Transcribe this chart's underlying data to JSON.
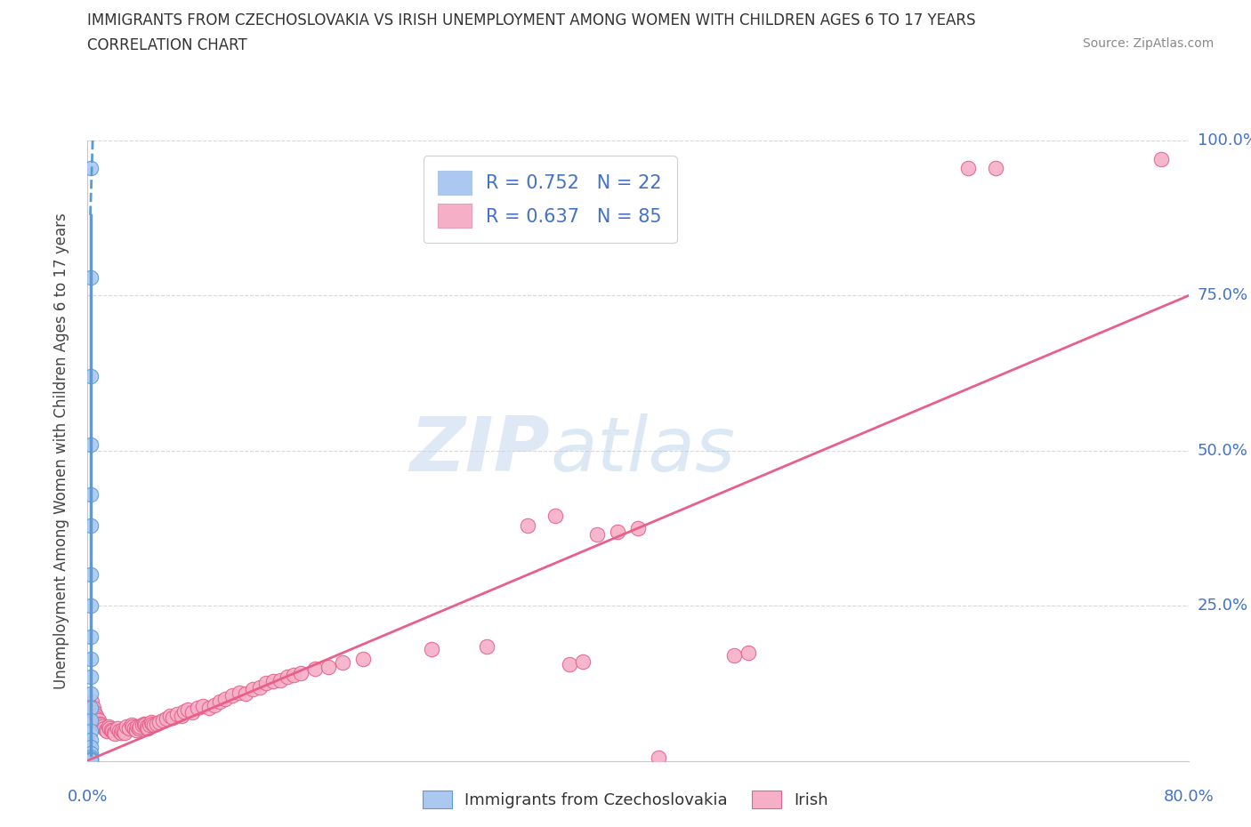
{
  "title": "IMMIGRANTS FROM CZECHOSLOVAKIA VS IRISH UNEMPLOYMENT AMONG WOMEN WITH CHILDREN AGES 6 TO 17 YEARS",
  "subtitle": "CORRELATION CHART",
  "source": "Source: ZipAtlas.com",
  "ylabel": "Unemployment Among Women with Children Ages 6 to 17 years",
  "xlim": [
    0.0,
    0.8
  ],
  "ylim": [
    0.0,
    1.0
  ],
  "xticks": [
    0.0,
    0.1,
    0.2,
    0.3,
    0.4,
    0.5,
    0.6,
    0.7,
    0.8
  ],
  "yticks": [
    0.0,
    0.25,
    0.5,
    0.75,
    1.0
  ],
  "blue_scatter": [
    [
      0.002,
      0.955
    ],
    [
      0.002,
      0.78
    ],
    [
      0.002,
      0.62
    ],
    [
      0.002,
      0.51
    ],
    [
      0.002,
      0.43
    ],
    [
      0.002,
      0.38
    ],
    [
      0.002,
      0.3
    ],
    [
      0.002,
      0.25
    ],
    [
      0.002,
      0.2
    ],
    [
      0.002,
      0.165
    ],
    [
      0.002,
      0.135
    ],
    [
      0.002,
      0.108
    ],
    [
      0.002,
      0.085
    ],
    [
      0.002,
      0.065
    ],
    [
      0.002,
      0.048
    ],
    [
      0.002,
      0.034
    ],
    [
      0.002,
      0.022
    ],
    [
      0.002,
      0.013
    ],
    [
      0.002,
      0.007
    ],
    [
      0.002,
      0.004
    ],
    [
      0.002,
      0.002
    ],
    [
      0.002,
      0.001
    ]
  ],
  "pink_scatter": [
    [
      0.003,
      0.095
    ],
    [
      0.004,
      0.085
    ],
    [
      0.005,
      0.078
    ],
    [
      0.006,
      0.072
    ],
    [
      0.007,
      0.068
    ],
    [
      0.008,
      0.065
    ],
    [
      0.009,
      0.06
    ],
    [
      0.01,
      0.058
    ],
    [
      0.011,
      0.055
    ],
    [
      0.012,
      0.052
    ],
    [
      0.013,
      0.05
    ],
    [
      0.014,
      0.048
    ],
    [
      0.015,
      0.055
    ],
    [
      0.016,
      0.052
    ],
    [
      0.017,
      0.05
    ],
    [
      0.018,
      0.048
    ],
    [
      0.019,
      0.046
    ],
    [
      0.02,
      0.044
    ],
    [
      0.022,
      0.052
    ],
    [
      0.023,
      0.048
    ],
    [
      0.024,
      0.046
    ],
    [
      0.025,
      0.05
    ],
    [
      0.026,
      0.048
    ],
    [
      0.027,
      0.046
    ],
    [
      0.028,
      0.055
    ],
    [
      0.03,
      0.052
    ],
    [
      0.032,
      0.058
    ],
    [
      0.033,
      0.055
    ],
    [
      0.034,
      0.052
    ],
    [
      0.035,
      0.05
    ],
    [
      0.036,
      0.055
    ],
    [
      0.037,
      0.052
    ],
    [
      0.038,
      0.055
    ],
    [
      0.04,
      0.058
    ],
    [
      0.041,
      0.06
    ],
    [
      0.042,
      0.058
    ],
    [
      0.043,
      0.055
    ],
    [
      0.044,
      0.052
    ],
    [
      0.045,
      0.058
    ],
    [
      0.046,
      0.062
    ],
    [
      0.047,
      0.06
    ],
    [
      0.048,
      0.058
    ],
    [
      0.05,
      0.06
    ],
    [
      0.052,
      0.062
    ],
    [
      0.055,
      0.065
    ],
    [
      0.057,
      0.068
    ],
    [
      0.06,
      0.072
    ],
    [
      0.062,
      0.07
    ],
    [
      0.065,
      0.075
    ],
    [
      0.068,
      0.072
    ],
    [
      0.07,
      0.08
    ],
    [
      0.073,
      0.082
    ],
    [
      0.076,
      0.078
    ],
    [
      0.08,
      0.085
    ],
    [
      0.084,
      0.088
    ],
    [
      0.088,
      0.085
    ],
    [
      0.092,
      0.09
    ],
    [
      0.096,
      0.095
    ],
    [
      0.1,
      0.1
    ],
    [
      0.105,
      0.105
    ],
    [
      0.11,
      0.11
    ],
    [
      0.115,
      0.108
    ],
    [
      0.12,
      0.115
    ],
    [
      0.125,
      0.118
    ],
    [
      0.13,
      0.125
    ],
    [
      0.135,
      0.128
    ],
    [
      0.14,
      0.13
    ],
    [
      0.145,
      0.135
    ],
    [
      0.15,
      0.138
    ],
    [
      0.155,
      0.142
    ],
    [
      0.165,
      0.148
    ],
    [
      0.175,
      0.152
    ],
    [
      0.185,
      0.158
    ],
    [
      0.2,
      0.165
    ],
    [
      0.25,
      0.18
    ],
    [
      0.29,
      0.185
    ],
    [
      0.32,
      0.38
    ],
    [
      0.34,
      0.395
    ],
    [
      0.35,
      0.155
    ],
    [
      0.36,
      0.16
    ],
    [
      0.37,
      0.365
    ],
    [
      0.385,
      0.37
    ],
    [
      0.4,
      0.375
    ],
    [
      0.415,
      0.005
    ],
    [
      0.47,
      0.17
    ],
    [
      0.48,
      0.175
    ],
    [
      0.64,
      0.955
    ],
    [
      0.66,
      0.955
    ],
    [
      0.78,
      0.97
    ]
  ],
  "blue_line_solid": [
    [
      0.002,
      0.01
    ],
    [
      0.002,
      0.88
    ]
  ],
  "blue_line_dashed": [
    [
      0.002,
      0.88
    ],
    [
      0.004,
      1.02
    ]
  ],
  "pink_line": [
    [
      -0.01,
      -0.009
    ],
    [
      0.8,
      0.75
    ]
  ],
  "blue_color": "#5b9bd5",
  "blue_scatter_color": "#aac8f0",
  "pink_color": "#e8608a",
  "pink_scatter_color": "#f5b0c8",
  "watermark_zip": "ZIP",
  "watermark_atlas": "atlas",
  "grid_color": "#d8d8d8",
  "legend_text_color": "#4472c4",
  "background_color": "#ffffff"
}
